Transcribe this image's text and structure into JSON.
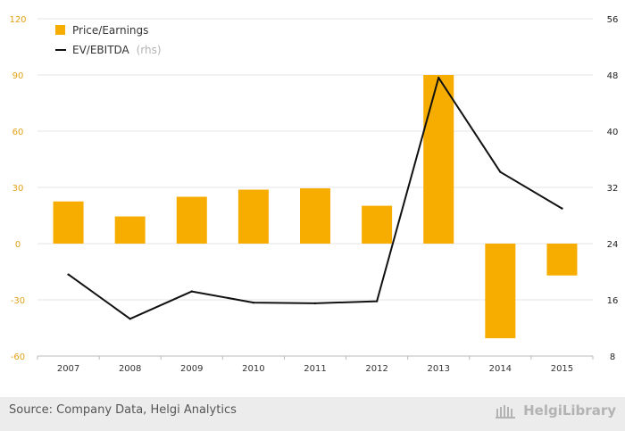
{
  "colors": {
    "bar": "#f7ad00",
    "line": "#111111",
    "left_axis_text": "#e3a21a",
    "right_axis_text": "#222222",
    "grid": "#e6e6e6",
    "footer_bg": "#ececec"
  },
  "legend": {
    "items": [
      {
        "label": "Price/Earnings",
        "suffix": ""
      },
      {
        "label": "EV/EBITDA",
        "suffix": "(rhs)"
      }
    ]
  },
  "chart_data": {
    "type": "bar",
    "categories": [
      "2007",
      "2008",
      "2009",
      "2010",
      "2011",
      "2012",
      "2013",
      "2014",
      "2015"
    ],
    "series": [
      {
        "name": "Price/Earnings",
        "type": "bar",
        "axis": "left",
        "values": [
          22.5,
          14.5,
          25,
          28.8,
          29.5,
          20.2,
          90,
          -50.5,
          -17
        ]
      },
      {
        "name": "EV/EBITDA (rhs)",
        "type": "line",
        "axis": "right",
        "values": [
          19.6,
          13.3,
          17.2,
          15.6,
          15.5,
          15.8,
          47.6,
          34.2,
          29
        ]
      }
    ],
    "left_axis": {
      "min": -60,
      "max": 120,
      "ticks": [
        -60,
        -30,
        0,
        30,
        60,
        90,
        120
      ]
    },
    "right_axis": {
      "min": 8,
      "max": 56,
      "ticks": [
        8,
        16,
        24,
        32,
        40,
        48,
        56
      ]
    },
    "grid": true,
    "legend_position": "top-left"
  },
  "footer": {
    "source": "Source: Company Data, Helgi Analytics",
    "logo_text": "HelgiLibrary"
  }
}
